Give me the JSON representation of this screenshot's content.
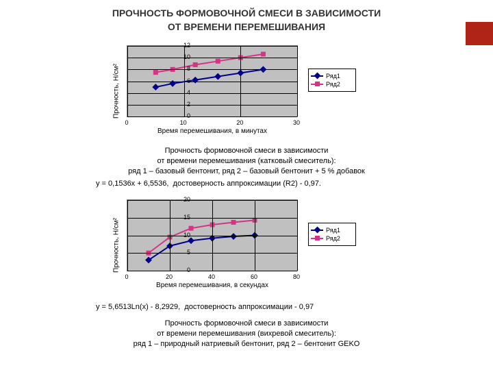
{
  "accent_color": "#b02418",
  "title_line1": "ПРОЧНОСТЬ ФОРМОВОЧНОЙ СМЕСИ В ЗАВИСИМОСТИ",
  "title_line2": "ОТ ВРЕМЕНИ ПЕРЕМЕШИВАНИЯ",
  "chart1": {
    "ylabel": "Прочность, Н/см²",
    "xlabel": "Время перемешивания, в минутах",
    "xlim": [
      0,
      30
    ],
    "ylim": [
      0,
      12
    ],
    "xticks": [
      0,
      10,
      20,
      30
    ],
    "yticks": [
      0,
      2,
      4,
      6,
      8,
      10,
      12
    ],
    "plot_bg": "#c0c0c0",
    "grid_color": "#000000",
    "series": [
      {
        "name": "Ряд1",
        "color": "#00008b",
        "marker": "diamond",
        "x": [
          5,
          8,
          12,
          16,
          20,
          24
        ],
        "y": [
          5.0,
          5.6,
          6.2,
          6.8,
          7.4,
          8.0
        ]
      },
      {
        "name": "Ряд2",
        "color": "#d63384",
        "marker": "square",
        "x": [
          5,
          8,
          12,
          16,
          20,
          24
        ],
        "y": [
          7.5,
          8.0,
          8.8,
          9.4,
          10.0,
          10.6
        ]
      }
    ]
  },
  "caption1_line1": "Прочность формовочной смеси в зависимости",
  "caption1_line2": "от времени перемешивания (катковый смеситель):",
  "caption1_line3": "ряд 1 – базовый бентонит, ряд 2 – базовый бентонит + 5 % добавок",
  "formula1": "y = 0,1536x + 6,5536,  достоверность аппроксимации (R2) - 0,97.",
  "chart2": {
    "ylabel": "Прочность, Н/см²",
    "xlabel": "Время перемешивания, в секундах",
    "xlim": [
      0,
      80
    ],
    "ylim": [
      0,
      20
    ],
    "xticks": [
      0,
      20,
      40,
      60,
      80
    ],
    "yticks": [
      0,
      5,
      10,
      15,
      20
    ],
    "plot_bg": "#c0c0c0",
    "grid_color": "#000000",
    "series": [
      {
        "name": "Ряд1",
        "color": "#00008b",
        "marker": "diamond",
        "x": [
          10,
          20,
          30,
          40,
          50,
          60
        ],
        "y": [
          3.0,
          7.0,
          8.5,
          9.2,
          9.7,
          10.0
        ]
      },
      {
        "name": "Ряд2",
        "color": "#d63384",
        "marker": "square",
        "x": [
          10,
          20,
          30,
          40,
          50,
          60
        ],
        "y": [
          5.0,
          9.5,
          12.0,
          13.0,
          13.7,
          14.3
        ]
      }
    ]
  },
  "formula2": "y = 5,6513Ln(x) - 8,2929,  достоверность аппроксимации - 0,97",
  "caption2_line1": "Прочность формовочной смеси в зависимости",
  "caption2_line2": "от времени перемешивания (вихревой смеситель):",
  "caption2_line3": "ряд 1 – природный натриевый бентонит, ряд 2 – бентонит GEKO"
}
